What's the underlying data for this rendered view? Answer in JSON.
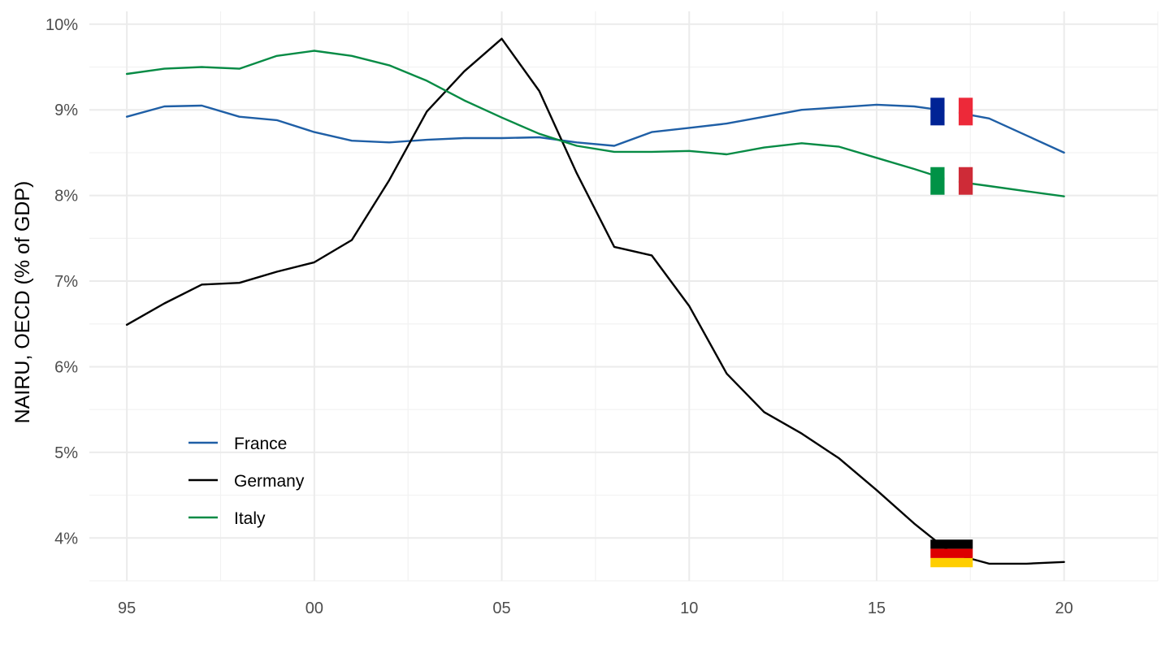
{
  "chart_data": {
    "type": "line",
    "ylabel": "NAIRU, OECD (% of GDP)",
    "xlabel": "",
    "x_ticks": [
      {
        "value": 1995,
        "label": "95"
      },
      {
        "value": 2000,
        "label": "00"
      },
      {
        "value": 2005,
        "label": "05"
      },
      {
        "value": 2010,
        "label": "10"
      },
      {
        "value": 2015,
        "label": "15"
      },
      {
        "value": 2020,
        "label": "20"
      }
    ],
    "y_ticks": [
      {
        "value": 4,
        "label": "4%"
      },
      {
        "value": 5,
        "label": "5%"
      },
      {
        "value": 6,
        "label": "6%"
      },
      {
        "value": 7,
        "label": "7%"
      },
      {
        "value": 8,
        "label": "8%"
      },
      {
        "value": 9,
        "label": "9%"
      },
      {
        "value": 10,
        "label": "10%"
      }
    ],
    "xlim": [
      1994,
      2022.5
    ],
    "ylim": [
      3.5,
      10.15
    ],
    "grid": true,
    "legend_position": "bottom-left",
    "x": [
      1995,
      1996,
      1997,
      1998,
      1999,
      2000,
      2001,
      2002,
      2003,
      2004,
      2005,
      2006,
      2007,
      2008,
      2009,
      2010,
      2011,
      2012,
      2013,
      2014,
      2015,
      2016,
      2017,
      2018,
      2019,
      2020
    ],
    "series": [
      {
        "name": "France",
        "color": "#1f5fa6",
        "flag": "france",
        "values": [
          8.92,
          9.04,
          9.05,
          8.92,
          8.88,
          8.74,
          8.64,
          8.62,
          8.65,
          8.67,
          8.67,
          8.68,
          8.62,
          8.58,
          8.74,
          8.79,
          8.84,
          8.92,
          9.0,
          9.03,
          9.06,
          9.04,
          8.98,
          8.9,
          8.7,
          8.5
        ]
      },
      {
        "name": "Germany",
        "color": "#000000",
        "flag": "germany",
        "values": [
          6.49,
          6.74,
          6.96,
          6.98,
          7.11,
          7.22,
          7.48,
          8.18,
          8.98,
          9.45,
          9.83,
          9.22,
          8.26,
          7.4,
          7.3,
          6.71,
          5.92,
          5.47,
          5.22,
          4.93,
          4.56,
          4.17,
          3.82,
          3.7,
          3.7,
          3.72
        ]
      },
      {
        "name": "Italy",
        "color": "#078b45",
        "flag": "italy",
        "values": [
          9.42,
          9.48,
          9.5,
          9.48,
          9.63,
          9.69,
          9.63,
          9.52,
          9.34,
          9.11,
          8.91,
          8.72,
          8.58,
          8.51,
          8.51,
          8.52,
          8.48,
          8.56,
          8.61,
          8.57,
          8.44,
          8.31,
          8.17,
          8.11,
          8.05,
          7.99
        ]
      }
    ]
  }
}
